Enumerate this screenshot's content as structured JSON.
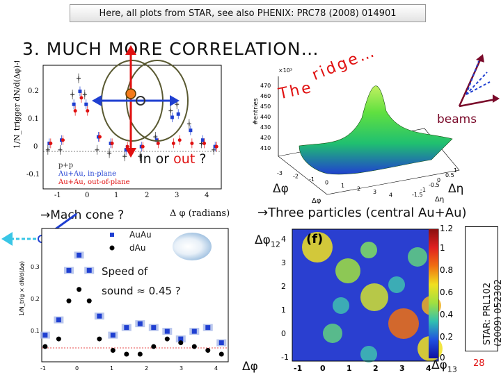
{
  "header_note": "Here, all plots from STAR, see also PHENIX: PRC78 (2008) 014901",
  "title": "3. MUCH MORE CORRELATION…",
  "colors": {
    "red": "#e01010",
    "blue": "#1f3fd1",
    "navy": "#0b2b8c",
    "olive": "#5a5a32",
    "cyan": "#39c6e6"
  },
  "panel_left": {
    "ylabel": "1/N_trigger dN/d(Δφ)-flow",
    "xlabel": "Δ φ (radians)",
    "legend": [
      "p+p",
      "Au+Au, in-plane",
      "Au+Au, out-of-plane"
    ],
    "y_ticks": [
      "0.2",
      "0.1",
      "0",
      "-0.1"
    ],
    "x_ticks": [
      "-1",
      "0",
      "1",
      "2",
      "3",
      "4"
    ],
    "question_prefix": "In or ",
    "question_out": "out",
    "question_suffix": " ?"
  },
  "panel_ridge": {
    "label_the": "The",
    "label_ridge": "ridge…",
    "zlabel": "#entries",
    "zexp": "×10³",
    "z_ticks": [
      "470",
      "460",
      "450",
      "440",
      "430",
      "420",
      "410"
    ],
    "dphi": "Δφ",
    "deta": "Δη",
    "dphi_small": "Δφ",
    "deta_small": "Δη",
    "phi_ticks": [
      "-3",
      "-2",
      "-1",
      "0",
      "1",
      "2",
      "3",
      "4"
    ],
    "eta_ticks": [
      "1",
      "0.5",
      "0",
      "-0.5",
      "-1",
      "-1.5"
    ]
  },
  "beams_label": "beams",
  "mach_label": "→Mach cone ?",
  "three_label": "→Three particles (central Au+Au)",
  "panel_mach": {
    "legend": [
      "AuAu",
      "dAu"
    ],
    "speed_line1": "Speed of",
    "speed_line2": "sound ≈ 0.45 ?",
    "ylabel": "1/N_trig × dN/d(Δφ)",
    "y_ticks": [
      "0.3",
      "0.2",
      "0.1"
    ],
    "x_ticks": [
      "-1",
      "0",
      "1",
      "2",
      "3",
      "4"
    ]
  },
  "panel_3p": {
    "dphi12": "Δφ₁₂",
    "dphi12_base": "Δφ",
    "dphi12_sub": "12",
    "dphi13_base": "Δφ",
    "dphi13_sub": "13",
    "dphi_bottom": "Δφ",
    "panel_tag": "(f)",
    "x_ticks": [
      "-1",
      "0",
      "1",
      "2",
      "3",
      "4"
    ],
    "y_ticks": [
      "4",
      "3",
      "2",
      "1",
      "0",
      "-1"
    ],
    "scale_ticks": [
      "1.2",
      "1",
      "0.8",
      "0.6",
      "0.4",
      "0.2",
      "0"
    ]
  },
  "reference": [
    "STAR: PRL102",
    "(2009) 052302"
  ],
  "page_number": "28",
  "chart_data": [
    {
      "type": "scatter",
      "xlabel": "Δ φ (radians)",
      "ylabel": "1/N_trigger dN/d(Δφ)-flow",
      "xlim": [
        -1.2,
        4.6
      ],
      "ylim": [
        -0.12,
        0.26
      ],
      "x": [
        -1.0,
        -0.6,
        -0.2,
        0.0,
        0.2,
        0.6,
        1.0,
        1.5,
        2.0,
        2.5,
        3.0,
        3.2,
        3.6,
        4.0,
        4.4
      ],
      "series": [
        {
          "name": "p+p",
          "values": [
            0.0,
            0.0,
            0.17,
            0.22,
            0.17,
            0.0,
            -0.01,
            -0.02,
            -0.02,
            0.04,
            0.12,
            0.14,
            0.08,
            0.02,
            0.0
          ]
        },
        {
          "name": "Au+Au, in-plane",
          "values": [
            0.02,
            0.03,
            0.14,
            0.18,
            0.14,
            0.04,
            0.02,
            0.0,
            0.01,
            0.03,
            0.1,
            0.11,
            0.06,
            0.03,
            0.01
          ]
        },
        {
          "name": "Au+Au, out-of-plane",
          "values": [
            0.02,
            0.03,
            0.12,
            0.16,
            0.12,
            0.04,
            0.02,
            0.01,
            0.01,
            0.02,
            0.02,
            0.03,
            0.02,
            0.02,
            0.01
          ]
        }
      ]
    },
    {
      "type": "scatter",
      "ylabel": "1/N_trig × dN/d(Δφ)",
      "xlim": [
        -1.1,
        4.4
      ],
      "ylim": [
        0.0,
        0.35
      ],
      "x": [
        -1.0,
        -0.6,
        -0.3,
        0.0,
        0.3,
        0.6,
        1.0,
        1.4,
        1.8,
        2.2,
        2.6,
        3.0,
        3.4,
        3.8,
        4.2
      ],
      "series": [
        {
          "name": "AuAu",
          "values": [
            0.07,
            0.11,
            0.24,
            0.28,
            0.24,
            0.12,
            0.07,
            0.09,
            0.1,
            0.09,
            0.08,
            0.06,
            0.08,
            0.09,
            0.05
          ]
        },
        {
          "name": "dAu",
          "values": [
            0.04,
            0.06,
            0.16,
            0.19,
            0.16,
            0.06,
            0.03,
            0.02,
            0.02,
            0.04,
            0.06,
            0.05,
            0.04,
            0.03,
            0.02
          ]
        }
      ]
    },
    {
      "type": "heatmap",
      "xlabel": "Δφ₁₃",
      "ylabel": "Δφ₁₂",
      "xlim": [
        -1,
        4.2
      ],
      "ylim": [
        -1,
        4.2
      ],
      "zlim": [
        0,
        1.2
      ]
    }
  ]
}
